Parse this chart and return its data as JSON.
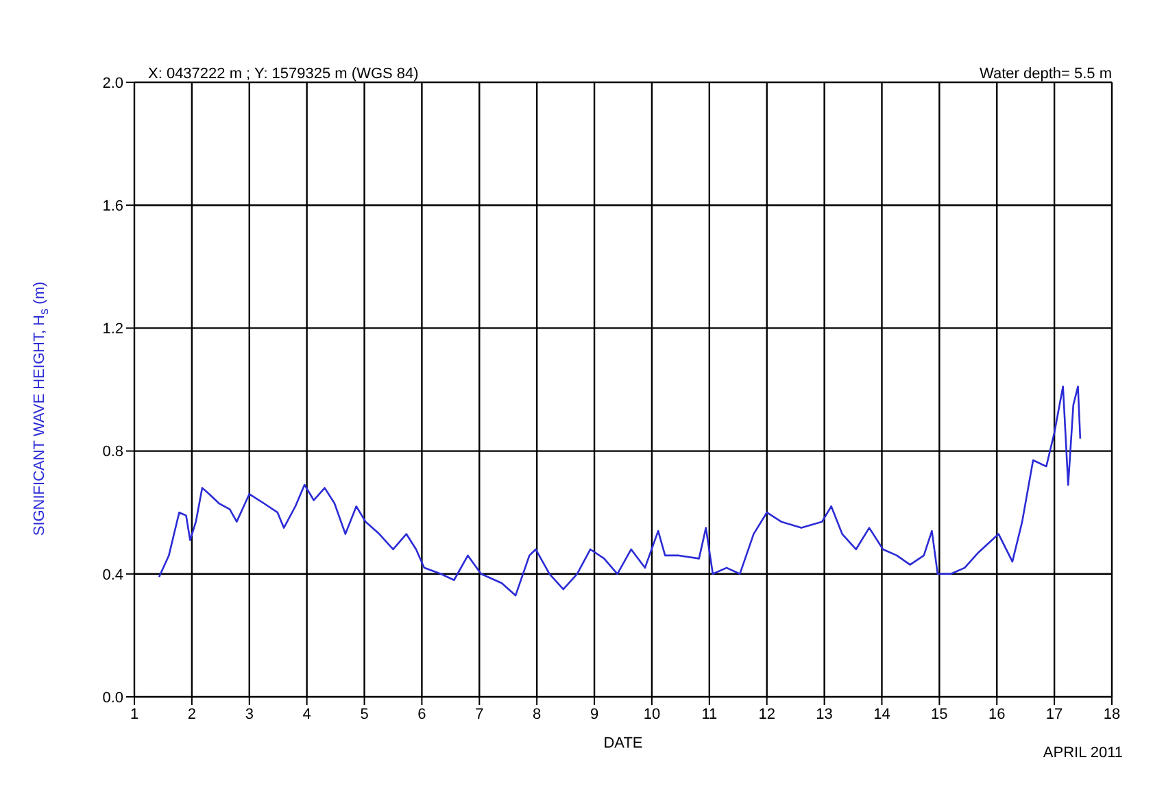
{
  "chart_data": {
    "type": "line",
    "xlabel": "DATE",
    "ylabel": "SIGNIFICANT WAVE HEIGHT, H$_{s}$ (m)",
    "annotations": [
      "X: 0437222 m ; Y: 1579325 m (WGS 84)",
      "Water depth= 5.5 m",
      "APRIL 2011"
    ],
    "x": [
      1.43,
      1.6,
      1.78,
      1.9,
      1.97,
      2.07,
      2.18,
      2.3,
      2.47,
      2.66,
      2.78,
      3.0,
      3.25,
      3.49,
      3.6,
      3.8,
      3.96,
      4.12,
      4.31,
      4.48,
      4.67,
      4.86,
      5.02,
      5.26,
      5.5,
      5.73,
      5.9,
      6.04,
      6.33,
      6.56,
      6.8,
      7.03,
      7.39,
      7.63,
      7.87,
      7.98,
      8.22,
      8.46,
      8.7,
      8.93,
      9.17,
      9.4,
      9.64,
      9.88,
      10.11,
      10.23,
      10.47,
      10.82,
      10.94,
      11.06,
      11.3,
      11.53,
      11.77,
      12.0,
      12.25,
      12.6,
      12.96,
      13.12,
      13.31,
      13.55,
      13.78,
      14.02,
      14.26,
      14.49,
      14.73,
      14.87,
      14.97,
      15.2,
      15.44,
      15.68,
      16.03,
      16.27,
      16.44,
      16.63,
      16.86,
      17.0,
      17.15,
      17.24,
      17.33,
      17.41,
      17.45
    ],
    "series": [
      {
        "color": "#2b2bd6",
        "values": [
          0.39,
          0.46,
          0.6,
          0.59,
          0.51,
          0.57,
          0.68,
          0.66,
          0.63,
          0.61,
          0.57,
          0.66,
          0.63,
          0.6,
          0.55,
          0.62,
          0.69,
          0.64,
          0.68,
          0.63,
          0.53,
          0.62,
          0.57,
          0.53,
          0.48,
          0.53,
          0.48,
          0.42,
          0.4,
          0.38,
          0.46,
          0.4,
          0.37,
          0.33,
          0.46,
          0.48,
          0.4,
          0.35,
          0.4,
          0.48,
          0.45,
          0.4,
          0.48,
          0.42,
          0.54,
          0.46,
          0.46,
          0.45,
          0.55,
          0.4,
          0.42,
          0.4,
          0.53,
          0.6,
          0.57,
          0.55,
          0.57,
          0.62,
          0.53,
          0.48,
          0.55,
          0.48,
          0.46,
          0.43,
          0.46,
          0.54,
          0.4,
          0.4,
          0.42,
          0.47,
          0.53,
          0.44,
          0.57,
          0.77,
          0.75,
          0.86,
          1.01,
          0.69,
          0.95,
          1.01,
          0.84
        ]
      }
    ],
    "xlim": [
      1,
      18
    ],
    "xticks": [
      1,
      2,
      3,
      4,
      5,
      6,
      7,
      8,
      9,
      10,
      11,
      12,
      13,
      14,
      15,
      16,
      17,
      18
    ],
    "ylim": [
      0,
      2
    ],
    "yticks": [
      {
        "value": 0,
        "label": "0.0"
      },
      0.4,
      0.8,
      1.2,
      1.6,
      {
        "value": 2,
        "label": "2.0"
      }
    ],
    "grid": true,
    "marker": "none",
    "line_style": "solid"
  }
}
